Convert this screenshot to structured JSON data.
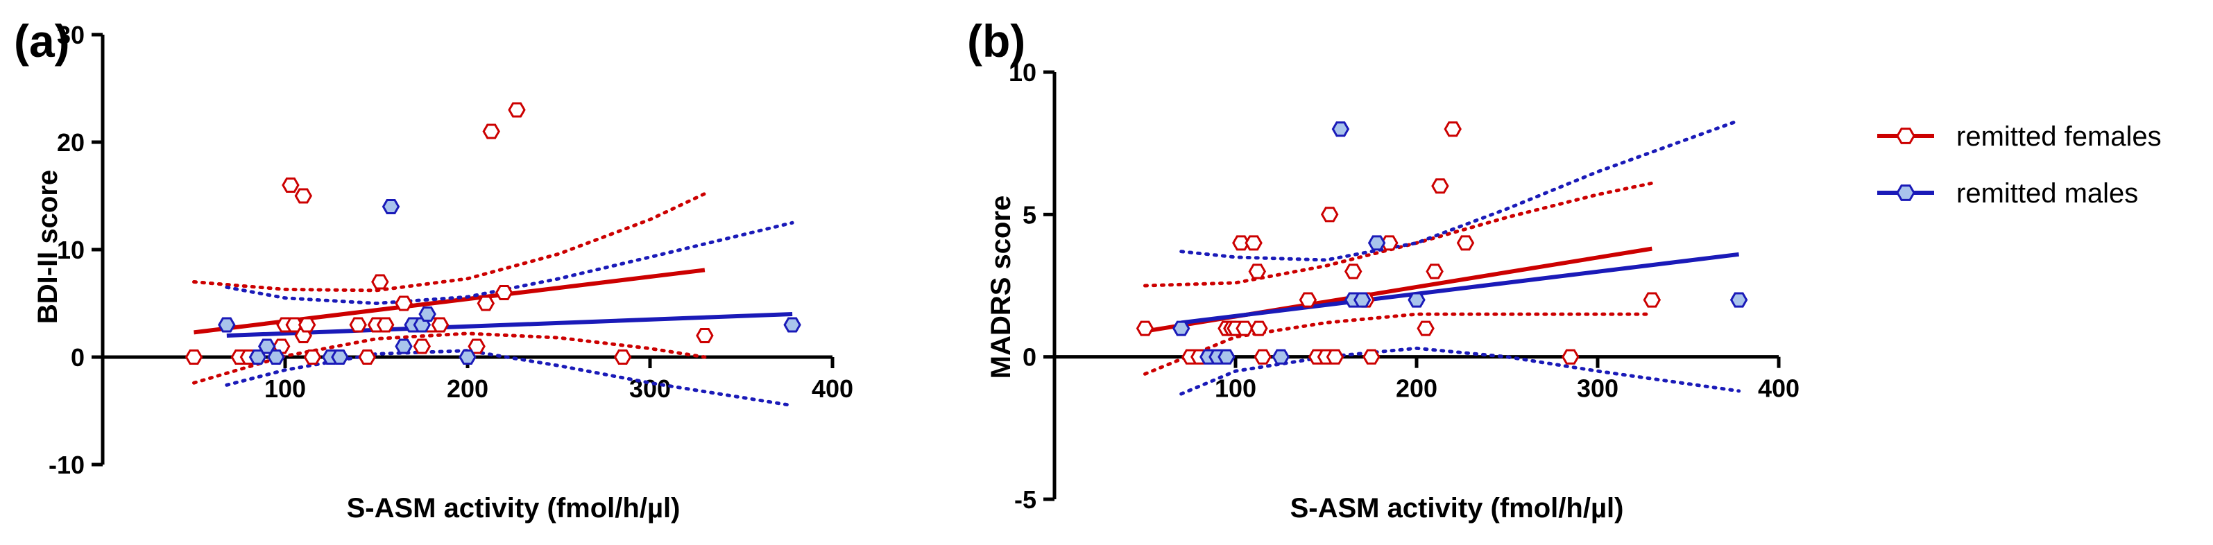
{
  "colors": {
    "females": "#cc0000",
    "females_fill": "#ffffff",
    "males": "#1a1ab8",
    "males_fill": "#a9c4ec",
    "axis": "#000000"
  },
  "legend": {
    "females_label": "remitted females",
    "males_label": "remitted males"
  },
  "chart_data": [
    {
      "type": "scatter",
      "panel_label": "(a)",
      "title": "",
      "xlabel": "S-ASM activity  (fmol/h/µl)",
      "ylabel": "BDI-II score",
      "xlim": [
        0,
        400
      ],
      "ylim": [
        -10,
        30
      ],
      "xticks": [
        100,
        200,
        300,
        400
      ],
      "yticks": [
        -10,
        0,
        10,
        20,
        30
      ],
      "series": [
        {
          "name": "remitted females",
          "points": [
            [
              50,
              0
            ],
            [
              75,
              0
            ],
            [
              80,
              0
            ],
            [
              98,
              1
            ],
            [
              100,
              3
            ],
            [
              103,
              16
            ],
            [
              105,
              3
            ],
            [
              110,
              15
            ],
            [
              110,
              2
            ],
            [
              112,
              3
            ],
            [
              115,
              0
            ],
            [
              140,
              3
            ],
            [
              145,
              0
            ],
            [
              150,
              3
            ],
            [
              152,
              7
            ],
            [
              155,
              3
            ],
            [
              165,
              5
            ],
            [
              172,
              3
            ],
            [
              175,
              1
            ],
            [
              180,
              3
            ],
            [
              185,
              3
            ],
            [
              205,
              1
            ],
            [
              210,
              5
            ],
            [
              213,
              21
            ],
            [
              220,
              6
            ],
            [
              227,
              23
            ],
            [
              285,
              0
            ],
            [
              330,
              2
            ]
          ],
          "fit": {
            "x": [
              50,
              330
            ],
            "y": [
              2.3,
              8.1
            ]
          },
          "ci_upper": {
            "x": [
              50,
              100,
              150,
              200,
              250,
              300,
              330
            ],
            "y": [
              7.0,
              6.3,
              6.2,
              7.3,
              9.6,
              12.8,
              15.2
            ]
          },
          "ci_lower": {
            "x": [
              50,
              100,
              150,
              200,
              250,
              300,
              330
            ],
            "y": [
              -2.4,
              0.1,
              1.7,
              2.2,
              1.8,
              0.8,
              0.0
            ]
          }
        },
        {
          "name": "remitted males",
          "points": [
            [
              68,
              3
            ],
            [
              85,
              0
            ],
            [
              90,
              1
            ],
            [
              95,
              0
            ],
            [
              125,
              0
            ],
            [
              130,
              0
            ],
            [
              158,
              14
            ],
            [
              165,
              1
            ],
            [
              170,
              3
            ],
            [
              175,
              3
            ],
            [
              178,
              4
            ],
            [
              200,
              0
            ],
            [
              378,
              3
            ]
          ],
          "fit": {
            "x": [
              68,
              378
            ],
            "y": [
              2.0,
              4.0
            ]
          },
          "ci_upper": {
            "x": [
              68,
              100,
              150,
              200,
              250,
              300,
              378
            ],
            "y": [
              6.5,
              5.5,
              5.0,
              5.6,
              7.3,
              9.3,
              12.5
            ]
          },
          "ci_lower": {
            "x": [
              68,
              100,
              150,
              200,
              250,
              300,
              378
            ],
            "y": [
              -2.6,
              -1.2,
              0.3,
              0.6,
              -0.8,
              -2.4,
              -4.5
            ]
          }
        }
      ]
    },
    {
      "type": "scatter",
      "panel_label": "(b)",
      "title": "",
      "xlabel": "S-ASM activity  (fmol/h/µl)",
      "ylabel": "MADRS score",
      "xlim": [
        0,
        400
      ],
      "ylim": [
        -5,
        10
      ],
      "xticks": [
        100,
        200,
        300,
        400
      ],
      "yticks": [
        -5,
        0,
        5,
        10
      ],
      "series": [
        {
          "name": "remitted females",
          "points": [
            [
              50,
              1
            ],
            [
              75,
              0
            ],
            [
              80,
              0
            ],
            [
              95,
              1
            ],
            [
              98,
              1
            ],
            [
              100,
              1
            ],
            [
              103,
              4
            ],
            [
              105,
              1
            ],
            [
              110,
              4
            ],
            [
              112,
              3
            ],
            [
              113,
              1
            ],
            [
              115,
              0
            ],
            [
              140,
              2
            ],
            [
              145,
              0
            ],
            [
              150,
              0
            ],
            [
              152,
              5
            ],
            [
              155,
              0
            ],
            [
              165,
              3
            ],
            [
              172,
              2
            ],
            [
              175,
              0
            ],
            [
              185,
              4
            ],
            [
              205,
              1
            ],
            [
              210,
              3
            ],
            [
              213,
              6
            ],
            [
              220,
              8
            ],
            [
              227,
              4
            ],
            [
              285,
              0
            ],
            [
              330,
              2
            ]
          ],
          "fit": {
            "x": [
              50,
              330
            ],
            "y": [
              0.9,
              3.8
            ]
          },
          "ci_upper": {
            "x": [
              50,
              100,
              150,
              200,
              250,
              300,
              330
            ],
            "y": [
              2.5,
              2.6,
              3.2,
              4.0,
              4.9,
              5.7,
              6.1
            ]
          },
          "ci_lower": {
            "x": [
              50,
              100,
              150,
              200,
              250,
              300,
              330
            ],
            "y": [
              -0.6,
              0.7,
              1.2,
              1.5,
              1.5,
              1.5,
              1.5
            ]
          }
        },
        {
          "name": "remitted males",
          "points": [
            [
              70,
              1
            ],
            [
              85,
              0
            ],
            [
              90,
              0
            ],
            [
              95,
              0
            ],
            [
              125,
              0
            ],
            [
              158,
              8
            ],
            [
              165,
              2
            ],
            [
              170,
              2
            ],
            [
              178,
              4
            ],
            [
              200,
              2
            ],
            [
              378,
              2
            ]
          ],
          "fit": {
            "x": [
              70,
              378
            ],
            "y": [
              1.2,
              3.6
            ]
          },
          "ci_upper": {
            "x": [
              70,
              100,
              150,
              200,
              250,
              300,
              378
            ],
            "y": [
              3.7,
              3.5,
              3.4,
              4.0,
              5.2,
              6.5,
              8.3
            ]
          },
          "ci_lower": {
            "x": [
              70,
              100,
              150,
              200,
              250,
              300,
              378
            ],
            "y": [
              -1.3,
              -0.5,
              0.0,
              0.3,
              0.0,
              -0.5,
              -1.2
            ]
          }
        }
      ]
    }
  ]
}
